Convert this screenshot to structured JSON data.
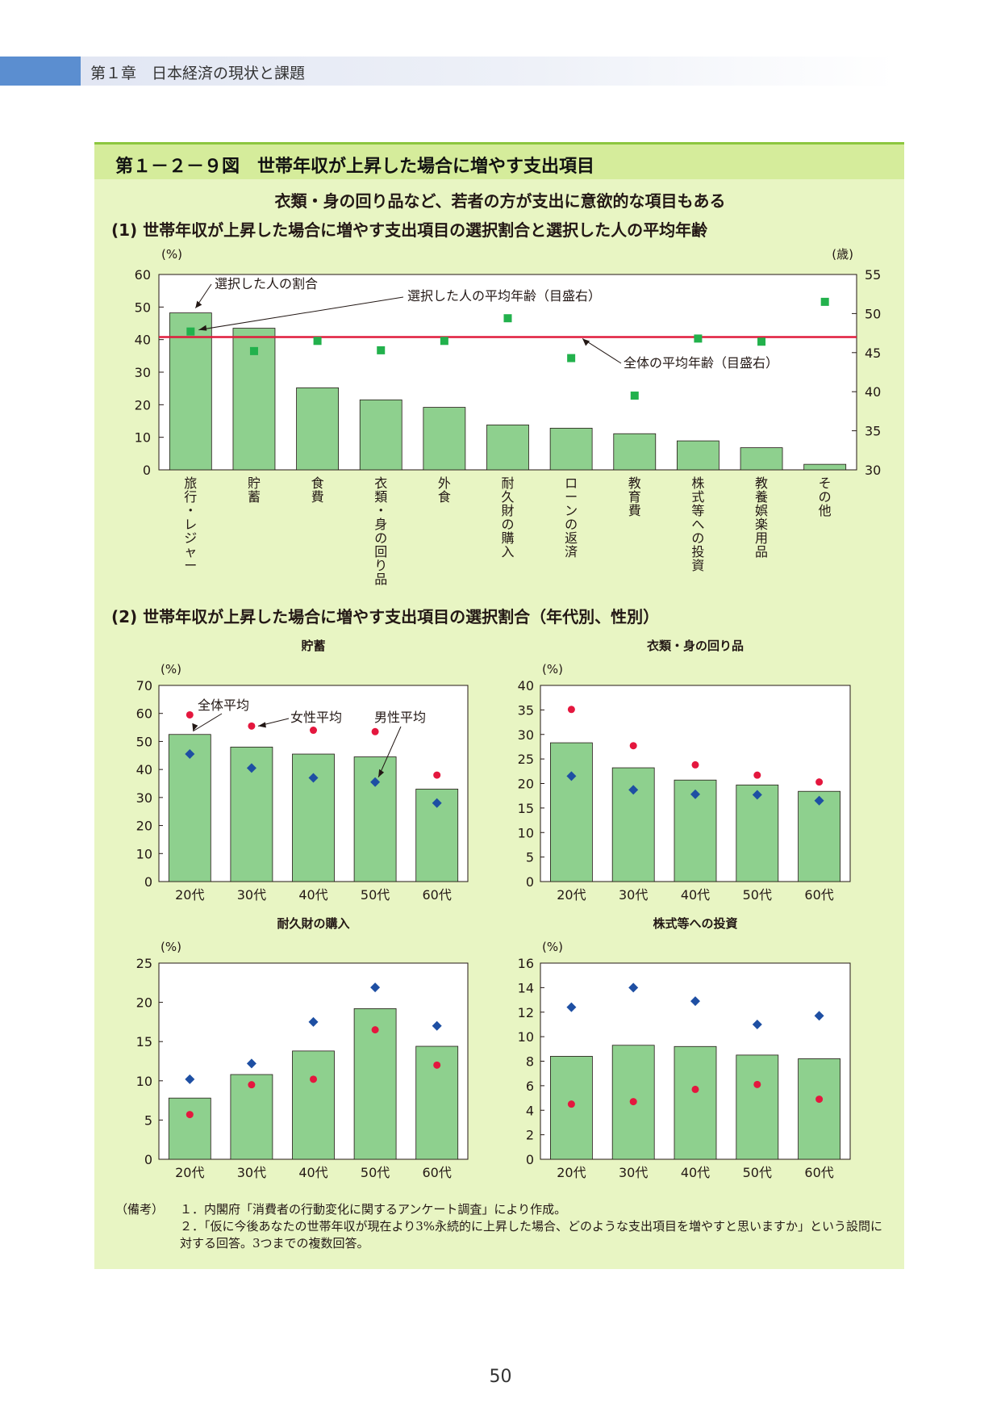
{
  "header": {
    "chapter_title": "第１章　日本経済の現状と課題"
  },
  "figure": {
    "title": "第１－２－９図　世帯年収が上昇した場合に増やす支出項目",
    "subtitle": "衣類・身の回り品など、若者の方が支出に意欲的な項目もある"
  },
  "colors": {
    "bar": "#8ed08e",
    "age_marker": "#22b14c",
    "avg_line": "#e01b3c",
    "female": "#e4173e",
    "male": "#1e4fa3",
    "panel": "#e8f5c3"
  },
  "chart_data": [
    {
      "type": "bar",
      "title": "(1) 世帯年収が上昇した場合に増やす支出項目の選択割合と選択した人の平均年齢",
      "ylabel_left": "(%)",
      "ylabel_right": "(歳)",
      "ylim": [
        0,
        60
      ],
      "yticks": [
        0,
        10,
        20,
        30,
        40,
        50,
        60
      ],
      "ylim_right": [
        30,
        55
      ],
      "yticks_right": [
        30,
        35,
        40,
        45,
        50,
        55
      ],
      "categories": [
        "旅行・レジャー",
        "貯蓄",
        "食費",
        "衣類・身の回り品",
        "外食",
        "耐久財の購入",
        "ローンの返済",
        "教育費",
        "株式等への投資",
        "教養娯楽用品",
        "その他"
      ],
      "series": [
        {
          "name": "選択した人の割合",
          "axis": "left",
          "values": [
            48.2,
            43.5,
            25.2,
            21.5,
            19.2,
            13.8,
            12.8,
            11.1,
            8.9,
            6.8,
            1.7
          ]
        },
        {
          "name": "選択した人の平均年齢（目盛右）",
          "axis": "right",
          "values": [
            47.7,
            45.2,
            46.5,
            45.3,
            46.5,
            49.4,
            44.3,
            39.5,
            46.8,
            46.4,
            51.5
          ]
        }
      ],
      "reference_line": {
        "label": "全体の平均年齢（目盛右）",
        "value": 47.0
      }
    },
    {
      "type": "bar",
      "section_title": "(2) 世帯年収が上昇した場合に増やす支出項目の選択割合（年代別、性別）",
      "title": "貯蓄",
      "ylabel": "(%)",
      "ylim": [
        0,
        70
      ],
      "yticks": [
        0,
        10,
        20,
        30,
        40,
        50,
        60,
        70
      ],
      "categories": [
        "20代",
        "30代",
        "40代",
        "50代",
        "60代"
      ],
      "series": [
        {
          "name": "全体平均",
          "values": [
            52.5,
            48.0,
            45.5,
            44.5,
            33.0
          ]
        },
        {
          "name": "女性平均",
          "values": [
            59.5,
            55.5,
            54.0,
            53.5,
            38.0
          ]
        },
        {
          "name": "男性平均",
          "values": [
            45.5,
            40.5,
            37.0,
            35.5,
            28.0
          ]
        }
      ]
    },
    {
      "type": "bar",
      "title": "衣類・身の回り品",
      "ylabel": "(%)",
      "ylim": [
        0,
        40
      ],
      "yticks": [
        0,
        5,
        10,
        15,
        20,
        25,
        30,
        35,
        40
      ],
      "categories": [
        "20代",
        "30代",
        "40代",
        "50代",
        "60代"
      ],
      "series": [
        {
          "name": "全体平均",
          "values": [
            28.3,
            23.2,
            20.7,
            19.7,
            18.4
          ]
        },
        {
          "name": "女性平均",
          "values": [
            35.1,
            27.7,
            23.8,
            21.7,
            20.3
          ]
        },
        {
          "name": "男性平均",
          "values": [
            21.5,
            18.7,
            17.8,
            17.7,
            16.5
          ]
        }
      ]
    },
    {
      "type": "bar",
      "title": "耐久財の購入",
      "ylabel": "(%)",
      "ylim": [
        0,
        25
      ],
      "yticks": [
        0,
        5,
        10,
        15,
        20,
        25
      ],
      "categories": [
        "20代",
        "30代",
        "40代",
        "50代",
        "60代"
      ],
      "series": [
        {
          "name": "全体平均",
          "values": [
            7.8,
            10.8,
            13.8,
            19.2,
            14.4
          ]
        },
        {
          "name": "女性平均",
          "values": [
            5.7,
            9.5,
            10.2,
            16.5,
            12.0
          ]
        },
        {
          "name": "男性平均",
          "values": [
            10.2,
            12.2,
            17.5,
            21.9,
            17.0
          ]
        }
      ]
    },
    {
      "type": "bar",
      "title": "株式等への投資",
      "ylabel": "(%)",
      "ylim": [
        0,
        16
      ],
      "yticks": [
        0,
        2,
        4,
        6,
        8,
        10,
        12,
        14,
        16
      ],
      "categories": [
        "20代",
        "30代",
        "40代",
        "50代",
        "60代"
      ],
      "series": [
        {
          "name": "全体平均",
          "values": [
            8.4,
            9.3,
            9.2,
            8.5,
            8.2
          ]
        },
        {
          "name": "女性平均",
          "values": [
            4.5,
            4.7,
            5.7,
            6.1,
            4.9
          ]
        },
        {
          "name": "男性平均",
          "values": [
            12.4,
            14.0,
            12.9,
            11.0,
            11.7
          ]
        }
      ]
    }
  ],
  "notes": {
    "label": "（備考）",
    "items": [
      "１．内閣府「消費者の行動変化に関するアンケート調査」により作成。",
      "２．「仮に今後あなたの世帯年収が現在より3%永続的に上昇した場合、どのような支出項目を増やすと思いますか」という設問に対する回答。3つまでの複数回答。"
    ]
  },
  "page_number": "50"
}
